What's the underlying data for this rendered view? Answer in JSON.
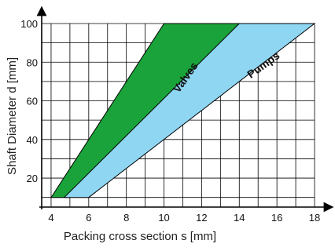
{
  "chart_data": {
    "type": "area",
    "title": "",
    "xlabel": "Packing cross section s [mm]",
    "ylabel": "Shaft Diameter d [mm]",
    "xlim": [
      3.5,
      18
    ],
    "ylim": [
      5,
      100
    ],
    "xticks": [
      4,
      6,
      8,
      10,
      12,
      14,
      16,
      18
    ],
    "yticks": [
      20,
      40,
      60,
      80,
      100
    ],
    "grid": true,
    "regions": [
      {
        "name": "Valves",
        "color": "#1aa33a",
        "polygon": [
          [
            4,
            10
          ],
          [
            5,
            10
          ],
          [
            14,
            100
          ],
          [
            10,
            100
          ]
        ]
      },
      {
        "name": "Pumps",
        "color": "#8fd6f2",
        "polygon": [
          [
            4.7,
            10
          ],
          [
            6,
            10
          ],
          [
            18,
            100
          ],
          [
            14,
            100
          ]
        ]
      }
    ]
  }
}
